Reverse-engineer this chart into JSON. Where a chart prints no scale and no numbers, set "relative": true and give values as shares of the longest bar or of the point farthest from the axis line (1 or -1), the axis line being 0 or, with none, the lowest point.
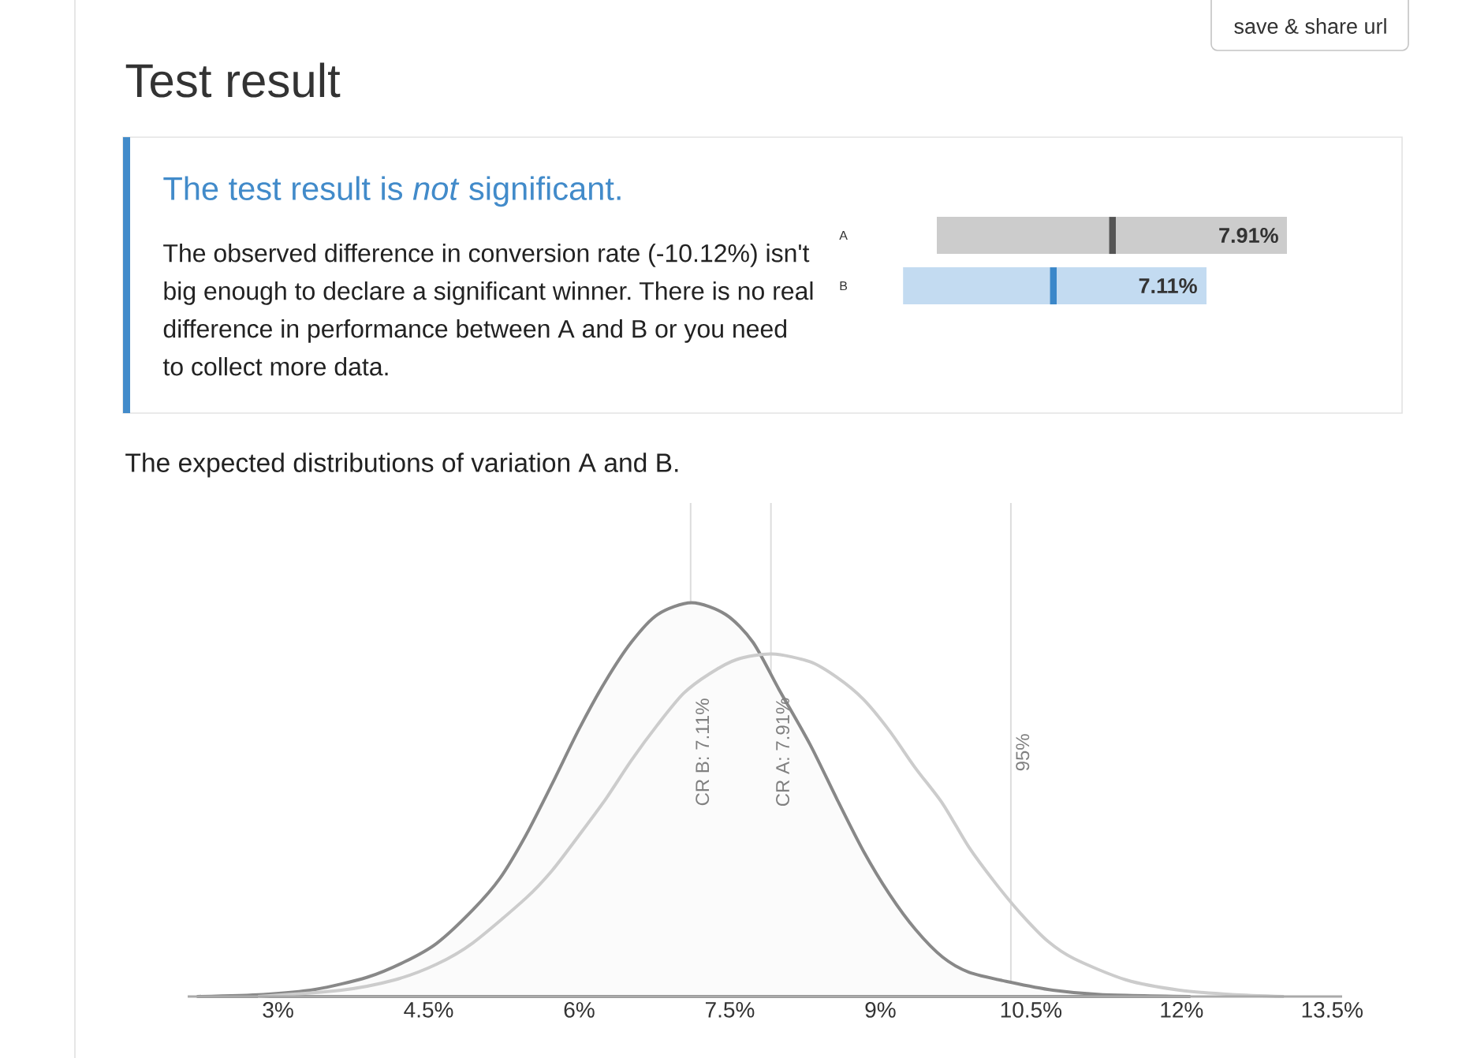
{
  "chart_data": [
    {
      "type": "other",
      "title": "Test result",
      "annotations": [
        "save & share url"
      ]
    },
    {
      "type": "other",
      "title": "The test result is *not* significant.",
      "annotations": [
        "The observed difference in conversion rate (-10.12%) isn't big enough to declare a significant winner. There is no real difference in performance between A and B or you need to collect more data."
      ]
    },
    {
      "type": "bar",
      "orientation": "horizontal",
      "relative": true,
      "stacked": true,
      "categories": [
        "A"
      ],
      "tick_labels": "y",
      "annotations": [
        "7.91%"
      ],
      "series": [
        {
          "color": "#cccccc",
          "values": [
            0.492
          ]
        },
        {
          "color": "#555555",
          "values": [
            0.02
          ]
        },
        {
          "color": "#cccccc",
          "values": [
            0.488
          ]
        }
      ]
    },
    {
      "type": "bar",
      "orientation": "horizontal",
      "relative": true,
      "stacked": true,
      "categories": [
        "B"
      ],
      "tick_labels": "y",
      "annotations": [
        "7.11%"
      ],
      "series": [
        {
          "color": "#c3dbf1",
          "values": [
            0.484
          ]
        },
        {
          "color": "#3b87c9",
          "values": [
            0.023
          ]
        },
        {
          "color": "#c3dbf1",
          "values": [
            0.493
          ]
        }
      ]
    },
    {
      "type": "line",
      "title": "The expected distributions of variation A and B.",
      "relative": true,
      "xlim": [
        2.1,
        13.6
      ],
      "xticks": [
        {
          "value": 3,
          "label": "3%"
        },
        {
          "value": 4.5,
          "label": "4.5%"
        },
        {
          "value": 6,
          "label": "6%"
        },
        {
          "value": 7.5,
          "label": "7.5%"
        },
        {
          "value": 9,
          "label": "9%"
        },
        {
          "value": 10.5,
          "label": "10.5%"
        },
        {
          "value": 12,
          "label": "12%"
        },
        {
          "value": 13.5,
          "label": "13.5%"
        }
      ],
      "series": [
        {
          "type": "area",
          "color": "#888888",
          "x": [
            2.2,
            2.85,
            3.37,
            3.89,
            4.26,
            4.58,
            4.94,
            5.21,
            5.47,
            5.73,
            6.0,
            6.26,
            6.52,
            6.78,
            7.12,
            7.46,
            7.73,
            7.99,
            8.3,
            8.57,
            8.83,
            9.09,
            9.35,
            9.62,
            9.88,
            10.3,
            10.72,
            11.19,
            12.08
          ],
          "values": [
            0,
            0.005,
            0.018,
            0.049,
            0.088,
            0.135,
            0.22,
            0.3,
            0.41,
            0.54,
            0.68,
            0.8,
            0.9,
            0.97,
            1,
            0.97,
            0.9,
            0.78,
            0.64,
            0.5,
            0.37,
            0.26,
            0.17,
            0.1,
            0.062,
            0.036,
            0.016,
            0.005,
            0
          ]
        },
        {
          "color": "#cccccc",
          "x": [
            2.8,
            3.63,
            4.16,
            4.58,
            4.94,
            5.47,
            5.73,
            6.0,
            6.26,
            6.52,
            6.78,
            7.04,
            7.3,
            7.57,
            7.92,
            8.3,
            8.57,
            8.83,
            9.09,
            9.35,
            9.62,
            9.88,
            10.14,
            10.4,
            10.67,
            10.93,
            11.45,
            11.98,
            12.5,
            13.02
          ],
          "values": [
            0,
            0.016,
            0.042,
            0.082,
            0.136,
            0.25,
            0.32,
            0.41,
            0.5,
            0.6,
            0.69,
            0.77,
            0.82,
            0.856,
            0.87,
            0.85,
            0.81,
            0.755,
            0.675,
            0.58,
            0.49,
            0.38,
            0.29,
            0.21,
            0.14,
            0.096,
            0.042,
            0.016,
            0.005,
            0
          ]
        }
      ],
      "ref_lines": [
        {
          "axis": "x",
          "value": 7.11,
          "label": "CR B: 7.11%",
          "color": "#dddddd"
        },
        {
          "axis": "x",
          "value": 7.91,
          "label": "CR A: 7.91%",
          "color": "#dddddd"
        },
        {
          "axis": "x",
          "value": 10.3,
          "color": "#dddddd"
        }
      ],
      "annotations": [
        {
          "text": "95%",
          "x": 10.3,
          "y": 0.62
        }
      ]
    }
  ]
}
